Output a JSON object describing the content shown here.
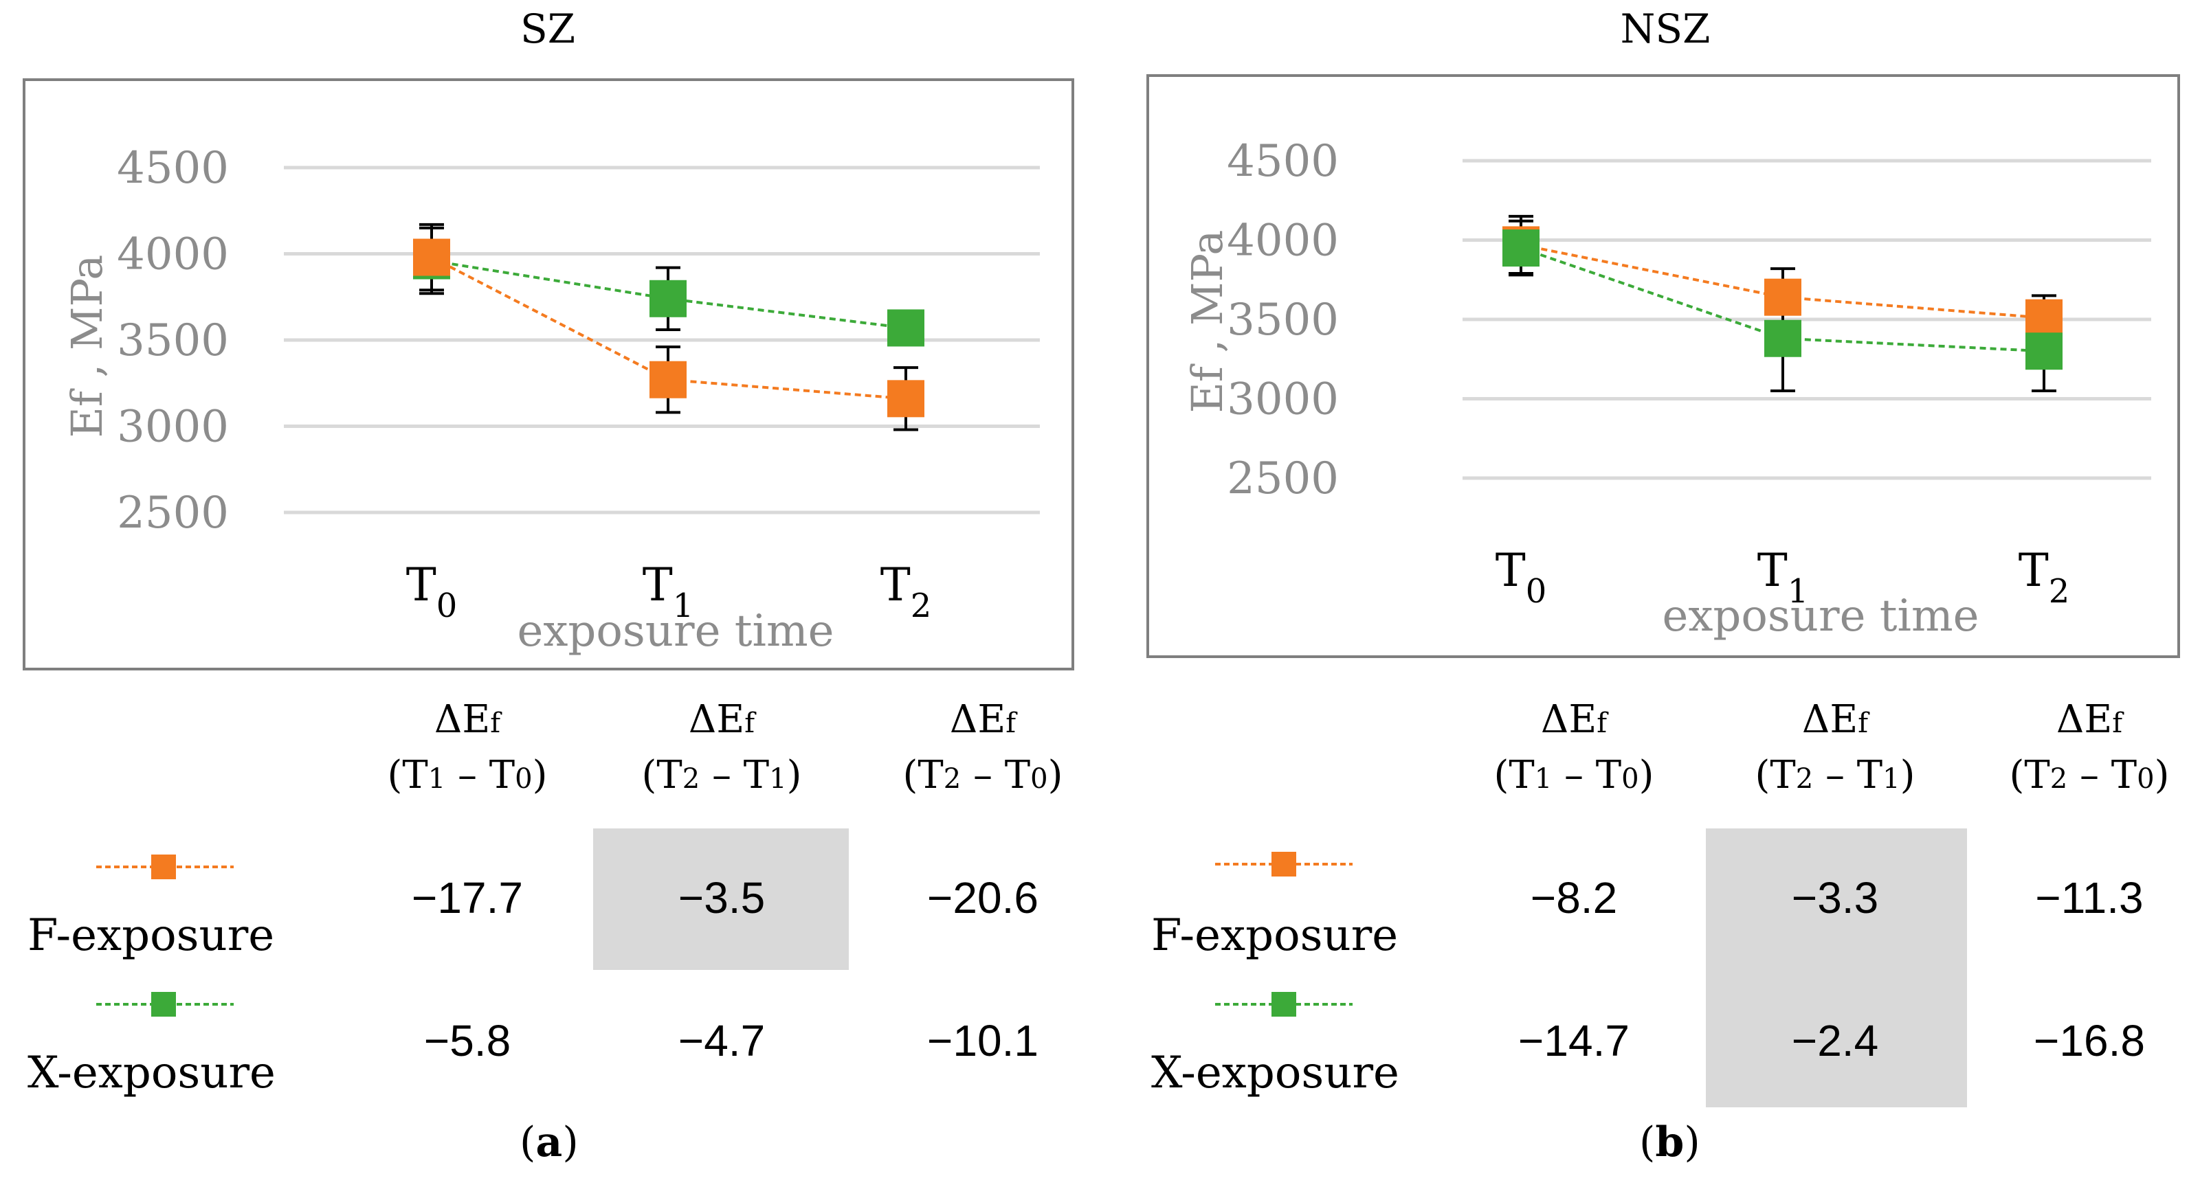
{
  "panels": [
    {
      "id": "a",
      "title": "SZ",
      "caption_letter": "a",
      "chart_data": {
        "type": "line",
        "title": "SZ",
        "xlabel": "exposure time",
        "ylabel": "Ef , MPa",
        "categories": [
          "T0",
          "T1",
          "T2"
        ],
        "ylim": [
          2500,
          4500
        ],
        "yticks": [
          2500,
          3000,
          3500,
          4000,
          4500
        ],
        "series": [
          {
            "name": "F-exposure",
            "color": "#F47B20",
            "values": [
              3980,
              3270,
              3160
            ],
            "err": [
              190,
              190,
              180
            ]
          },
          {
            "name": "X-exposure",
            "color": "#3CAA39",
            "values": [
              3960,
              3740,
              3570
            ],
            "err": [
              190,
              180,
              80
            ]
          }
        ]
      },
      "table": {
        "headers": [
          [
            "ΔEf",
            "(T1 – T0)"
          ],
          [
            "ΔEf",
            "(T2 – T1)"
          ],
          [
            "ΔEf",
            "(T2 – T0)"
          ]
        ],
        "rows": [
          {
            "label": "F-exposure",
            "values": [
              "−17.7",
              "−3.5",
              "−20.6"
            ]
          },
          {
            "label": "X-exposure",
            "values": [
              "−5.8",
              "−4.7",
              "−10.1"
            ]
          }
        ]
      }
    },
    {
      "id": "b",
      "title": "NSZ",
      "caption_letter": "b",
      "chart_data": {
        "type": "line",
        "title": "NSZ",
        "xlabel": "exposure time",
        "ylabel": "Ef , MPa",
        "categories": [
          "T0",
          "T1",
          "T2"
        ],
        "ylim": [
          2500,
          4500
        ],
        "yticks": [
          2500,
          3000,
          3500,
          4000,
          4500
        ],
        "series": [
          {
            "name": "F-exposure",
            "color": "#F47B20",
            "values": [
              3970,
              3640,
              3510
            ],
            "err": [
              180,
              180,
              140
            ]
          },
          {
            "name": "X-exposure",
            "color": "#3CAA39",
            "values": [
              3950,
              3380,
              3300
            ],
            "err": [
              170,
              330,
              250
            ]
          }
        ]
      },
      "table": {
        "headers": [
          [
            "ΔEf",
            "(T1 – T0)"
          ],
          [
            "ΔEf",
            "(T2 – T1)"
          ],
          [
            "ΔEf",
            "(T2 – T0)"
          ]
        ],
        "rows": [
          {
            "label": "F-exposure",
            "values": [
              "−8.2",
              "−3.3",
              "−11.3"
            ]
          },
          {
            "label": "X-exposure",
            "values": [
              "−14.7",
              "−2.4",
              "−16.8"
            ]
          }
        ]
      }
    }
  ]
}
